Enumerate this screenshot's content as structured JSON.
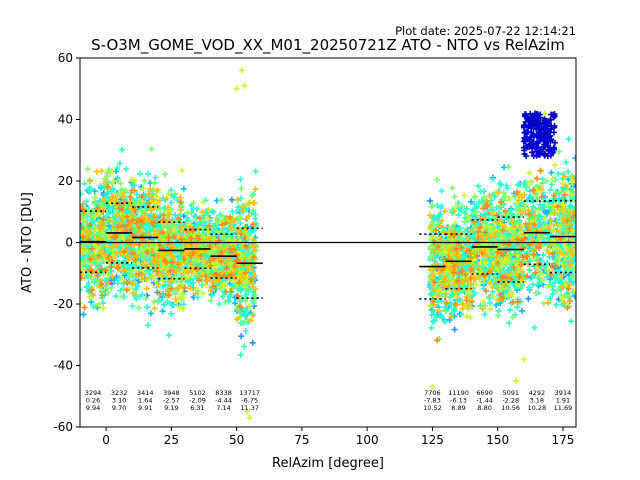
{
  "plot_date": "Plot date: 2025-07-22 12:14:21",
  "chart_data": {
    "type": "scatter",
    "title": "S-O3M_GOME_VOD_XX_M01_20250721Z ATO - NTO vs RelAzim",
    "xlabel": "RelAzim [degree]",
    "ylabel": "ATO - NTO [DU]",
    "xlim": [
      -10,
      180
    ],
    "ylim": [
      -60,
      60
    ],
    "xticks": [
      0,
      25,
      50,
      75,
      100,
      125,
      150,
      175
    ],
    "yticks": [
      -60,
      -40,
      -20,
      0,
      20,
      40,
      60
    ],
    "grid": false,
    "zero_line": 0,
    "marker": "+",
    "colormap": "jet",
    "colors": [
      "#0000cd",
      "#1e90ff",
      "#00bfff",
      "#2fffd0",
      "#7fff6f",
      "#c6ff2f",
      "#ffc000",
      "#ff8c1a"
    ],
    "scatter_clusters": [
      {
        "x_range": [
          -10,
          57
        ],
        "y_range": [
          -35,
          38
        ]
      },
      {
        "x_range": [
          124,
          180
        ],
        "y_range": [
          -48,
          43
        ]
      }
    ],
    "bins": [
      {
        "x": -5,
        "count": "3294",
        "mean": 0.26,
        "std": 9.94,
        "x_span": [
          -10,
          0
        ]
      },
      {
        "x": 5,
        "count": "3232",
        "mean": 3.1,
        "std": 9.7,
        "x_span": [
          0,
          10
        ]
      },
      {
        "x": 15,
        "count": "3414",
        "mean": 1.64,
        "std": 9.91,
        "x_span": [
          10,
          20
        ]
      },
      {
        "x": 25,
        "count": "3948",
        "mean": -2.57,
        "std": 9.19,
        "x_span": [
          20,
          30
        ]
      },
      {
        "x": 35,
        "count": "5102",
        "mean": -2.09,
        "std": 6.31,
        "x_span": [
          30,
          40
        ]
      },
      {
        "x": 45,
        "count": "8338",
        "mean": -4.44,
        "std": 7.14,
        "x_span": [
          40,
          50
        ]
      },
      {
        "x": 55,
        "count": "13717",
        "mean": -6.75,
        "std": 11.37,
        "x_span": [
          50,
          60
        ]
      },
      {
        "x": 125,
        "count": "7706",
        "mean": -7.83,
        "std": 10.52,
        "x_span": [
          120,
          130
        ]
      },
      {
        "x": 135,
        "count": "11190",
        "mean": -6.13,
        "std": 8.89,
        "x_span": [
          130,
          140
        ]
      },
      {
        "x": 145,
        "count": "6690",
        "mean": -1.44,
        "std": 8.8,
        "x_span": [
          140,
          150
        ]
      },
      {
        "x": 155,
        "count": "5091",
        "mean": -2.28,
        "std": 10.56,
        "x_span": [
          150,
          160
        ]
      },
      {
        "x": 165,
        "count": "4292",
        "mean": 3.18,
        "std": 10.28,
        "x_span": [
          160,
          170
        ]
      },
      {
        "x": 175,
        "count": "3914",
        "mean": 1.91,
        "std": 11.69,
        "x_span": [
          170,
          180
        ]
      }
    ]
  }
}
